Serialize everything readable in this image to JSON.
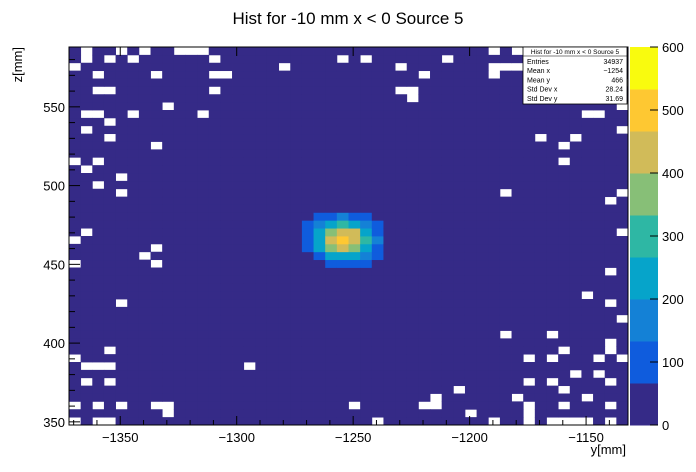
{
  "chart_data": {
    "type": "heatmap",
    "title": "Hist for -10 mm x < 0 Source 5",
    "xlabel": "y[mm]",
    "ylabel": "z[mm]",
    "xlim": [
      -1372,
      -1132
    ],
    "ylim": [
      348,
      588
    ],
    "bin_width": 5,
    "x_ticks": [
      -1350,
      -1300,
      -1250,
      -1200,
      -1150
    ],
    "y_ticks": [
      350,
      400,
      450,
      500,
      550
    ],
    "z_range": [
      0,
      600
    ],
    "z_ticks": [
      0,
      100,
      200,
      300,
      400,
      500,
      600
    ],
    "peak": {
      "x": -1254,
      "y": 466,
      "value": 520
    },
    "core_sigma": {
      "x": 9,
      "y": 9
    },
    "colors": [
      "#352a87",
      "#0f5cdd",
      "#1481d6",
      "#06a4ca",
      "#2eb7a4",
      "#87bf77",
      "#d1bb59",
      "#fec832",
      "#f9fb0e"
    ],
    "legend_position": "top-right",
    "stats": {
      "title": "Hist for -10 mm x < 0 Source 5",
      "rows": [
        {
          "label": "Entries",
          "value": "34937"
        },
        {
          "label": "Mean x",
          "value": "−1254"
        },
        {
          "label": "Mean y",
          "value": "466"
        },
        {
          "label": "Std Dev x",
          "value": "28.24"
        },
        {
          "label": "Std Dev y",
          "value": "31.69"
        }
      ]
    }
  }
}
